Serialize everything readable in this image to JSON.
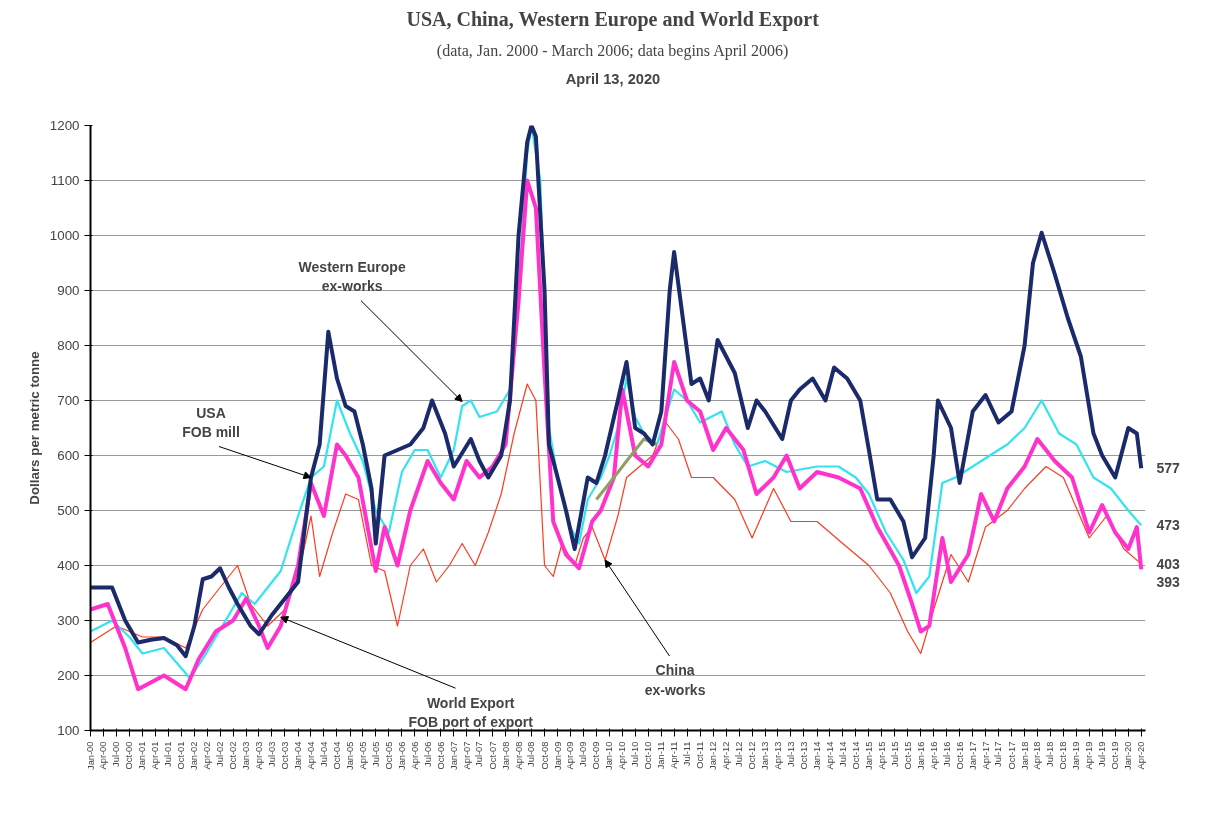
{
  "chart_data": {
    "type": "line",
    "title": "USA, China, Western Europe and World Export",
    "subtitle": "(data, Jan. 2000 - March 2006; data begins April 2006)",
    "ylabel": "Dollars per metric tonne",
    "ylim": [
      100,
      1200
    ],
    "yticks": [
      100,
      200,
      300,
      400,
      500,
      600,
      700,
      800,
      900,
      1000,
      1100,
      1200
    ],
    "xlim": [
      "2000-01",
      "2020-05"
    ],
    "grid": "y",
    "xticks": [
      {
        "value": "2000-01",
        "label": "Jan-00"
      },
      {
        "value": "2000-04",
        "label": "Apr-00"
      },
      {
        "value": "2000-07",
        "label": "Jul-00"
      },
      {
        "value": "2000-10",
        "label": "Oct-00"
      },
      {
        "value": "2001-01",
        "label": "Jan-01"
      },
      {
        "value": "2001-04",
        "label": "Apr-01"
      },
      {
        "value": "2001-07",
        "label": "Jul-01"
      },
      {
        "value": "2001-10",
        "label": "Oct-01"
      },
      {
        "value": "2002-01",
        "label": "Jan-02"
      },
      {
        "value": "2002-04",
        "label": "Apr-02"
      },
      {
        "value": "2002-07",
        "label": "Jul-02"
      },
      {
        "value": "2002-10",
        "label": "Oct-02"
      },
      {
        "value": "2003-01",
        "label": "Jan-03"
      },
      {
        "value": "2003-04",
        "label": "Apr-03"
      },
      {
        "value": "2003-07",
        "label": "Jul-03"
      },
      {
        "value": "2003-10",
        "label": "Oct-03"
      },
      {
        "value": "2004-01",
        "label": "Jan-04"
      },
      {
        "value": "2004-04",
        "label": "Apr-04"
      },
      {
        "value": "2004-07",
        "label": "Jul-04"
      },
      {
        "value": "2004-10",
        "label": "Oct-04"
      },
      {
        "value": "2005-01",
        "label": "Jan-05"
      },
      {
        "value": "2005-04",
        "label": "Apr-05"
      },
      {
        "value": "2005-07",
        "label": "Jul-05"
      },
      {
        "value": "2005-10",
        "label": "Oct-05"
      },
      {
        "value": "2006-01",
        "label": "Jan-06"
      },
      {
        "value": "2006-04",
        "label": "Apr-06"
      },
      {
        "value": "2006-07",
        "label": "Jul-06"
      },
      {
        "value": "2006-10",
        "label": "Oct-06"
      },
      {
        "value": "2007-01",
        "label": "Jan-07"
      },
      {
        "value": "2007-04",
        "label": "Apr-07"
      },
      {
        "value": "2007-07",
        "label": "Jul-07"
      },
      {
        "value": "2007-10",
        "label": "Oct-07"
      },
      {
        "value": "2008-01",
        "label": "Jan-08"
      },
      {
        "value": "2008-04",
        "label": "Apr-08"
      },
      {
        "value": "2008-07",
        "label": "Jul-08"
      },
      {
        "value": "2008-10",
        "label": "Oct-08"
      },
      {
        "value": "2009-01",
        "label": "Jan-09"
      },
      {
        "value": "2009-04",
        "label": "Apr-09"
      },
      {
        "value": "2009-07",
        "label": "Jul-09"
      },
      {
        "value": "2009-10",
        "label": "Oct-09"
      },
      {
        "value": "2010-01",
        "label": "Jan-10"
      },
      {
        "value": "2010-04",
        "label": "Apr-10"
      },
      {
        "value": "2010-07",
        "label": "Jul-10"
      },
      {
        "value": "2010-10",
        "label": "Oct-10"
      },
      {
        "value": "2011-01",
        "label": "Jan-11"
      },
      {
        "value": "2011-04",
        "label": "Apr-11"
      },
      {
        "value": "2011-07",
        "label": "Jul-11"
      },
      {
        "value": "2011-10",
        "label": "Oct-11"
      },
      {
        "value": "2012-01",
        "label": "Jan-12"
      },
      {
        "value": "2012-04",
        "label": "Apr-12"
      },
      {
        "value": "2012-07",
        "label": "Jul-12"
      },
      {
        "value": "2012-10",
        "label": "Oct-12"
      },
      {
        "value": "2013-01",
        "label": "Jan-13"
      },
      {
        "value": "2013-04",
        "label": "Apr-13"
      },
      {
        "value": "2013-07",
        "label": "Jul-13"
      },
      {
        "value": "2013-10",
        "label": "Oct-13"
      },
      {
        "value": "2014-01",
        "label": "Jan-14"
      },
      {
        "value": "2014-04",
        "label": "Apr-14"
      },
      {
        "value": "2014-07",
        "label": "Jul-14"
      },
      {
        "value": "2014-10",
        "label": "Oct-14"
      },
      {
        "value": "2015-01",
        "label": "Jan-15"
      },
      {
        "value": "2015-04",
        "label": "Apr-15"
      },
      {
        "value": "2015-07",
        "label": "Jul-15"
      },
      {
        "value": "2015-10",
        "label": "Oct-15"
      },
      {
        "value": "2016-01",
        "label": "Jan-16"
      },
      {
        "value": "2016-04",
        "label": "Apr-16"
      },
      {
        "value": "2016-07",
        "label": "Jul-16"
      },
      {
        "value": "2016-10",
        "label": "Oct-16"
      },
      {
        "value": "2017-01",
        "label": "Jan-17"
      },
      {
        "value": "2017-04",
        "label": "Apr-17"
      },
      {
        "value": "2017-07",
        "label": "Jul-17"
      },
      {
        "value": "2017-10",
        "label": "Oct-17"
      },
      {
        "value": "2018-01",
        "label": "Jan-18"
      },
      {
        "value": "2018-04",
        "label": "Apr-18"
      },
      {
        "value": "2018-07",
        "label": "Jul-18"
      },
      {
        "value": "2018-10",
        "label": "Oct-18"
      },
      {
        "value": "2019-01",
        "label": "Jan-19"
      },
      {
        "value": "2019-04",
        "label": "Apr-19"
      },
      {
        "value": "2019-07",
        "label": "Jul-19"
      },
      {
        "value": "2019-10",
        "label": "Oct-19"
      },
      {
        "value": "2020-01",
        "label": "Jan-20"
      },
      {
        "value": "2020-04",
        "label": "Apr-20"
      }
    ],
    "annotations": [
      "April 13, 2020",
      {
        "text": "Western Europe\nex-works",
        "x": "2007-03",
        "y": 698
      },
      {
        "text": "USA\nFOB mill",
        "x": "2004-04",
        "y": 560
      },
      {
        "text": "World Export\nFOB port of export",
        "x": "2003-09",
        "y": 306
      },
      {
        "text": "China\nex-works",
        "x": "2009-12",
        "y": 410
      },
      {
        "text": "577",
        "x": "2020-04",
        "y": 577
      },
      {
        "text": "473",
        "x": "2020-04",
        "y": 473
      },
      {
        "text": "403",
        "x": "2020-04",
        "y": 403
      },
      {
        "text": "393",
        "x": "2020-04",
        "y": 393
      }
    ],
    "series": [
      {
        "color": "#ff3b1f",
        "x": [
          "2000-01",
          "2000-07",
          "2001-01",
          "2001-06",
          "2001-11",
          "2002-03",
          "2002-07",
          "2002-11",
          "2003-02",
          "2003-06",
          "2003-10",
          "2004-01",
          "2004-04",
          "2004-06",
          "2004-09",
          "2004-12",
          "2005-03",
          "2005-06",
          "2005-09",
          "2005-12",
          "2006-03",
          "2006-06",
          "2006-09",
          "2006-12",
          "2007-03",
          "2007-06",
          "2007-09",
          "2007-12",
          "2008-03",
          "2008-06",
          "2008-08",
          "2008-10",
          "2008-12",
          "2009-02",
          "2009-05",
          "2009-07",
          "2009-09",
          "2009-12",
          "2010-03",
          "2010-05",
          "2010-11",
          "2011-02",
          "2011-05",
          "2011-08",
          "2012-01",
          "2012-06",
          "2012-10",
          "2013-03",
          "2013-07",
          "2014-01",
          "2014-07",
          "2015-01",
          "2015-06",
          "2015-10",
          "2016-01",
          "2016-04",
          "2016-08",
          "2016-12",
          "2017-04",
          "2017-09",
          "2018-01",
          "2018-06",
          "2018-10",
          "2019-04",
          "2019-08",
          "2019-12",
          "2020-04"
        ],
        "values": [
          260,
          290,
          270,
          270,
          250,
          320,
          360,
          400,
          330,
          290,
          320,
          380,
          490,
          380,
          460,
          530,
          520,
          400,
          390,
          290,
          400,
          430,
          370,
          400,
          440,
          400,
          460,
          530,
          640,
          730,
          700,
          400,
          380,
          440,
          400,
          450,
          470,
          410,
          490,
          560,
          600,
          660,
          630,
          560,
          560,
          520,
          450,
          540,
          480,
          480,
          440,
          400,
          350,
          280,
          240,
          320,
          420,
          370,
          470,
          500,
          540,
          580,
          560,
          450,
          490,
          430,
          403
        ]
      },
      {
        "color": "#33e3f0",
        "x": [
          "2000-01",
          "2000-06",
          "2000-10",
          "2001-01",
          "2001-06",
          "2001-12",
          "2002-03",
          "2002-06",
          "2002-09",
          "2002-12",
          "2003-03",
          "2003-06",
          "2003-09",
          "2004-01",
          "2004-04",
          "2004-07",
          "2004-10",
          "2005-01",
          "2005-04",
          "2005-07",
          "2005-10",
          "2006-01",
          "2006-04",
          "2006-07",
          "2006-10",
          "2007-01",
          "2007-03",
          "2007-05",
          "2007-07",
          "2007-11",
          "2008-02",
          "2008-04",
          "2008-06",
          "2008-07",
          "2008-09",
          "2008-11",
          "2009-01",
          "2009-04",
          "2009-06",
          "2009-08",
          "2009-11",
          "2010-01",
          "2010-03",
          "2010-05",
          "2010-07",
          "2010-09",
          "2010-12",
          "2011-04",
          "2011-07",
          "2011-10",
          "2012-03",
          "2012-06",
          "2012-09",
          "2013-01",
          "2013-06",
          "2014-01",
          "2014-06",
          "2014-10",
          "2015-01",
          "2015-05",
          "2015-09",
          "2015-12",
          "2016-03",
          "2016-06",
          "2016-09",
          "2017-01",
          "2017-05",
          "2017-09",
          "2018-01",
          "2018-05",
          "2018-09",
          "2019-01",
          "2019-05",
          "2019-09",
          "2020-01",
          "2020-04"
        ],
        "values": [
          280,
          300,
          270,
          240,
          250,
          195,
          230,
          270,
          310,
          350,
          330,
          360,
          390,
          490,
          560,
          580,
          700,
          640,
          590,
          500,
          460,
          570,
          610,
          610,
          560,
          610,
          690,
          700,
          670,
          680,
          720,
          900,
          1150,
          1200,
          1100,
          650,
          560,
          470,
          440,
          520,
          560,
          600,
          650,
          740,
          670,
          640,
          620,
          720,
          700,
          660,
          680,
          620,
          580,
          590,
          570,
          580,
          580,
          560,
          530,
          460,
          410,
          350,
          380,
          550,
          560,
          580,
          600,
          620,
          650,
          700,
          640,
          620,
          560,
          540,
          500,
          473
        ]
      },
      {
        "color": "#ff33cc",
        "x": [
          "2000-01",
          "2000-05",
          "2000-09",
          "2000-12",
          "2001-06",
          "2001-11",
          "2002-02",
          "2002-06",
          "2002-10",
          "2003-01",
          "2003-04",
          "2003-06",
          "2003-09",
          "2004-01",
          "2004-04",
          "2004-07",
          "2004-10",
          "2004-12",
          "2005-03",
          "2005-07",
          "2005-09",
          "2005-12",
          "2006-03",
          "2006-07",
          "2006-10",
          "2007-01",
          "2007-04",
          "2007-07",
          "2007-10",
          "2008-01",
          "2008-04",
          "2008-06",
          "2008-08",
          "2008-10",
          "2008-12",
          "2009-03",
          "2009-06",
          "2009-09",
          "2009-11",
          "2010-02",
          "2010-04",
          "2010-07",
          "2010-10",
          "2011-01",
          "2011-04",
          "2011-07",
          "2011-10",
          "2012-01",
          "2012-04",
          "2012-08",
          "2012-11",
          "2013-03",
          "2013-06",
          "2013-09",
          "2014-01",
          "2014-06",
          "2014-11",
          "2015-03",
          "2015-08",
          "2015-11",
          "2016-01",
          "2016-03",
          "2016-06",
          "2016-08",
          "2016-12",
          "2017-03",
          "2017-06",
          "2017-09",
          "2018-01",
          "2018-04",
          "2018-08",
          "2018-12",
          "2019-04",
          "2019-07",
          "2019-10",
          "2020-01",
          "2020-03",
          "2020-04"
        ],
        "values": [
          320,
          330,
          250,
          175,
          200,
          175,
          230,
          280,
          300,
          340,
          290,
          250,
          290,
          400,
          550,
          490,
          620,
          600,
          560,
          390,
          470,
          400,
          500,
          590,
          550,
          520,
          590,
          560,
          580,
          620,
          880,
          1100,
          1050,
          750,
          480,
          420,
          395,
          480,
          500,
          560,
          720,
          600,
          580,
          620,
          770,
          700,
          680,
          610,
          650,
          610,
          530,
          560,
          600,
          540,
          570,
          560,
          540,
          470,
          400,
          330,
          280,
          290,
          450,
          370,
          420,
          530,
          480,
          540,
          580,
          630,
          590,
          560,
          460,
          510,
          460,
          430,
          470,
          393
        ]
      },
      {
        "color": "#8fa060",
        "x": [
          "2009-10",
          "2010-02",
          "2010-06",
          "2010-09",
          "2010-12"
        ],
        "values": [
          520,
          560,
          600,
          630,
          620
        ]
      },
      {
        "color": "#1b2a6b",
        "x": [
          "2000-01",
          "2000-06",
          "2000-09",
          "2000-12",
          "2001-03",
          "2001-06",
          "2001-09",
          "2001-11",
          "2002-01",
          "2002-03",
          "2002-05",
          "2002-07",
          "2002-09",
          "2002-11",
          "2003-02",
          "2003-04",
          "2003-07",
          "2003-10",
          "2004-01",
          "2004-04",
          "2004-06",
          "2004-08",
          "2004-10",
          "2004-12",
          "2005-02",
          "2005-04",
          "2005-06",
          "2005-07",
          "2005-09",
          "2005-12",
          "2006-03",
          "2006-06",
          "2006-08",
          "2006-11",
          "2007-01",
          "2007-05",
          "2007-07",
          "2007-09",
          "2007-12",
          "2008-02",
          "2008-04",
          "2008-06",
          "2008-07",
          "2008-08",
          "2008-10",
          "2008-11",
          "2009-01",
          "2009-03",
          "2009-05",
          "2009-08",
          "2009-10",
          "2009-12",
          "2010-03",
          "2010-05",
          "2010-07",
          "2010-09",
          "2010-11",
          "2011-01",
          "2011-03",
          "2011-04",
          "2011-06",
          "2011-08",
          "2011-10",
          "2011-12",
          "2012-02",
          "2012-06",
          "2012-09",
          "2012-11",
          "2013-01",
          "2013-05",
          "2013-07",
          "2013-09",
          "2013-12",
          "2014-03",
          "2014-05",
          "2014-08",
          "2014-11",
          "2015-01",
          "2015-03",
          "2015-06",
          "2015-09",
          "2015-11",
          "2016-02",
          "2016-04",
          "2016-05",
          "2016-08",
          "2016-10",
          "2017-01",
          "2017-04",
          "2017-07",
          "2017-10",
          "2018-01",
          "2018-03",
          "2018-05",
          "2018-08",
          "2018-11",
          "2019-02",
          "2019-05",
          "2019-07",
          "2019-10",
          "2020-01",
          "2020-03",
          "2020-04"
        ],
        "values": [
          360,
          360,
          300,
          260,
          265,
          268,
          255,
          235,
          290,
          375,
          380,
          395,
          360,
          330,
          290,
          275,
          310,
          340,
          370,
          560,
          620,
          825,
          740,
          690,
          680,
          620,
          540,
          440,
          600,
          610,
          620,
          650,
          700,
          640,
          580,
          630,
          590,
          560,
          600,
          700,
          1000,
          1170,
          1200,
          1180,
          900,
          620,
          560,
          500,
          430,
          560,
          550,
          600,
          700,
          770,
          650,
          640,
          620,
          680,
          900,
          970,
          850,
          730,
          740,
          700,
          810,
          750,
          650,
          700,
          680,
          630,
          700,
          720,
          740,
          700,
          760,
          740,
          700,
          610,
          520,
          520,
          480,
          415,
          450,
          600,
          700,
          650,
          550,
          680,
          710,
          660,
          680,
          800,
          950,
          1005,
          930,
          850,
          780,
          640,
          600,
          560,
          650,
          640,
          577
        ]
      }
    ]
  }
}
